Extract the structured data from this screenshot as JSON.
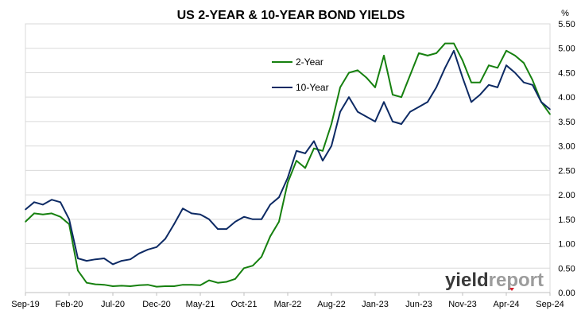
{
  "chart_data": {
    "type": "line",
    "title": "US 2-YEAR & 10-YEAR BOND YIELDS",
    "ylabel": "%",
    "xlabel": "",
    "x_ticks": [
      "Sep-19",
      "Feb-20",
      "Jul-20",
      "Dec-20",
      "May-21",
      "Oct-21",
      "Mar-22",
      "Aug-22",
      "Jan-23",
      "Jun-23",
      "Nov-23",
      "Apr-24",
      "Sep-24"
    ],
    "y_ticks": [
      "0.00",
      "0.50",
      "1.00",
      "1.50",
      "2.00",
      "2.50",
      "3.00",
      "3.50",
      "4.00",
      "4.50",
      "5.00",
      "5.50"
    ],
    "ylim": [
      0,
      5.5
    ],
    "grid": "horizontal",
    "legend_position": "upper-middle",
    "series": [
      {
        "name": "2-Year",
        "color": "#16800f",
        "x": [
          "2019-09",
          "2019-10",
          "2019-11",
          "2019-12",
          "2020-01",
          "2020-02",
          "2020-03",
          "2020-04",
          "2020-05",
          "2020-06",
          "2020-07",
          "2020-08",
          "2020-09",
          "2020-10",
          "2020-11",
          "2020-12",
          "2021-01",
          "2021-02",
          "2021-03",
          "2021-04",
          "2021-05",
          "2021-06",
          "2021-07",
          "2021-08",
          "2021-09",
          "2021-10",
          "2021-11",
          "2021-12",
          "2022-01",
          "2022-02",
          "2022-03",
          "2022-04",
          "2022-05",
          "2022-06",
          "2022-07",
          "2022-08",
          "2022-09",
          "2022-10",
          "2022-11",
          "2022-12",
          "2023-01",
          "2023-02",
          "2023-03",
          "2023-04",
          "2023-05",
          "2023-06",
          "2023-07",
          "2023-08",
          "2023-09",
          "2023-10",
          "2023-11",
          "2023-12",
          "2024-01",
          "2024-02",
          "2024-03",
          "2024-04",
          "2024-05",
          "2024-06",
          "2024-07",
          "2024-08",
          "2024-09"
        ],
        "values": [
          1.45,
          1.62,
          1.6,
          1.62,
          1.55,
          1.4,
          0.45,
          0.2,
          0.17,
          0.16,
          0.13,
          0.14,
          0.13,
          0.15,
          0.16,
          0.12,
          0.13,
          0.13,
          0.16,
          0.16,
          0.15,
          0.25,
          0.2,
          0.22,
          0.28,
          0.5,
          0.55,
          0.73,
          1.15,
          1.45,
          2.25,
          2.7,
          2.55,
          2.95,
          2.9,
          3.45,
          4.2,
          4.5,
          4.55,
          4.4,
          4.2,
          4.85,
          4.05,
          4.0,
          4.45,
          4.9,
          4.85,
          4.9,
          5.1,
          5.1,
          4.75,
          4.3,
          4.3,
          4.65,
          4.6,
          4.95,
          4.85,
          4.7,
          4.35,
          3.9,
          3.65
        ]
      },
      {
        "name": "10-Year",
        "color": "#0d2a64",
        "x": [
          "2019-09",
          "2019-10",
          "2019-11",
          "2019-12",
          "2020-01",
          "2020-02",
          "2020-03",
          "2020-04",
          "2020-05",
          "2020-06",
          "2020-07",
          "2020-08",
          "2020-09",
          "2020-10",
          "2020-11",
          "2020-12",
          "2021-01",
          "2021-02",
          "2021-03",
          "2021-04",
          "2021-05",
          "2021-06",
          "2021-07",
          "2021-08",
          "2021-09",
          "2021-10",
          "2021-11",
          "2021-12",
          "2022-01",
          "2022-02",
          "2022-03",
          "2022-04",
          "2022-05",
          "2022-06",
          "2022-07",
          "2022-08",
          "2022-09",
          "2022-10",
          "2022-11",
          "2022-12",
          "2023-01",
          "2023-02",
          "2023-03",
          "2023-04",
          "2023-05",
          "2023-06",
          "2023-07",
          "2023-08",
          "2023-09",
          "2023-10",
          "2023-11",
          "2023-12",
          "2024-01",
          "2024-02",
          "2024-03",
          "2024-04",
          "2024-05",
          "2024-06",
          "2024-07",
          "2024-08",
          "2024-09"
        ],
        "values": [
          1.7,
          1.85,
          1.8,
          1.9,
          1.85,
          1.5,
          0.7,
          0.65,
          0.68,
          0.7,
          0.58,
          0.65,
          0.68,
          0.8,
          0.88,
          0.93,
          1.1,
          1.4,
          1.72,
          1.62,
          1.6,
          1.5,
          1.3,
          1.3,
          1.45,
          1.55,
          1.5,
          1.5,
          1.8,
          1.95,
          2.35,
          2.9,
          2.85,
          3.1,
          2.7,
          3.0,
          3.7,
          4.0,
          3.7,
          3.6,
          3.5,
          3.9,
          3.5,
          3.45,
          3.7,
          3.8,
          3.9,
          4.2,
          4.6,
          4.95,
          4.4,
          3.9,
          4.05,
          4.25,
          4.2,
          4.65,
          4.5,
          4.3,
          4.25,
          3.9,
          3.75
        ]
      }
    ]
  },
  "watermark": {
    "part1": "yield",
    "part2": "report",
    "color1": "#3a3a3a",
    "color2": "#9c9c9c"
  }
}
